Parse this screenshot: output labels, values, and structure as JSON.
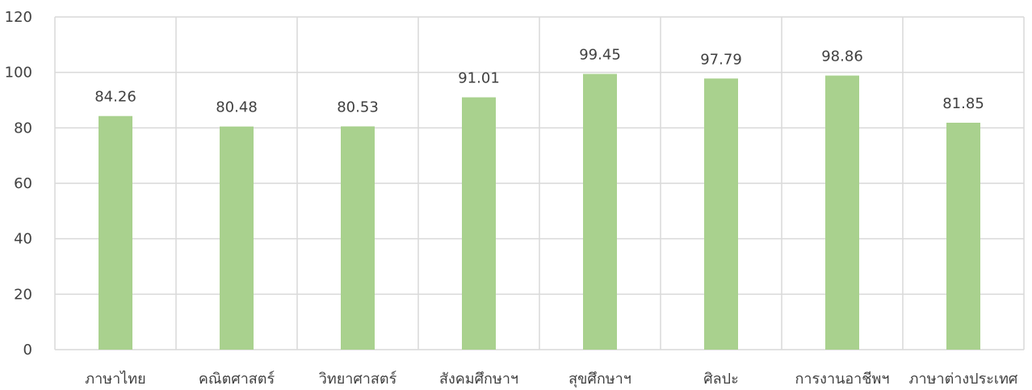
{
  "chart_data": {
    "type": "bar",
    "title": "",
    "xlabel": "",
    "ylabel": "",
    "categories": [
      "ภาษาไทย",
      "คณิตศาสตร์",
      "วิทยาศาสตร์",
      "สังคมศึกษาฯ",
      "สุขศึกษาฯ",
      "ศิลปะ",
      "การงานอาชีพฯ",
      "ภาษาต่างประเทศ"
    ],
    "values": [
      84.26,
      80.48,
      80.53,
      91.01,
      99.45,
      97.79,
      98.86,
      81.85
    ],
    "value_labels": [
      "84.26",
      "80.48",
      "80.53",
      "91.01",
      "99.45",
      "97.79",
      "98.86",
      "81.85"
    ],
    "ylim": [
      0,
      120
    ],
    "yticks": [
      0,
      20,
      40,
      60,
      80,
      100,
      120
    ],
    "grid": true,
    "legend": "none",
    "bar_color": "#a9d18e"
  }
}
